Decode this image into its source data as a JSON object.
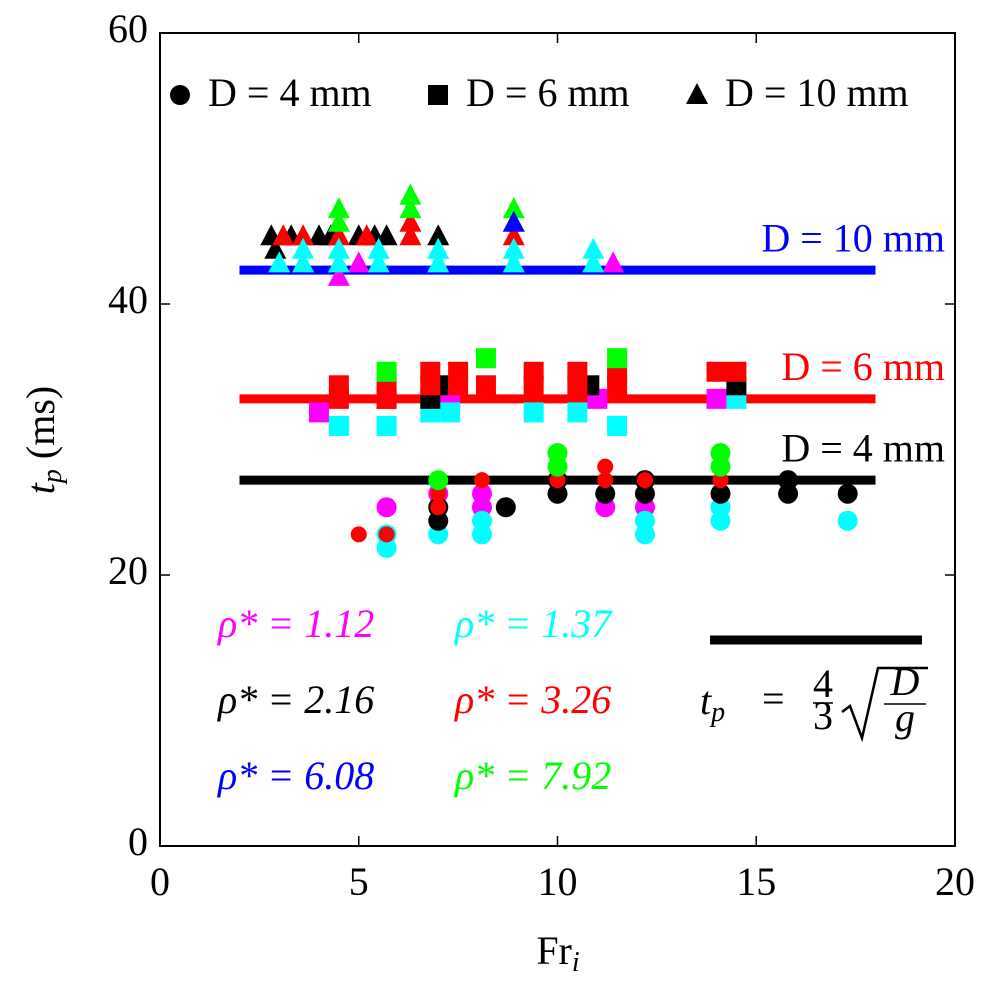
{
  "chart_data": {
    "type": "scatter",
    "xlabel": {
      "symbol": "Fr",
      "sub": "i"
    },
    "ylabel": {
      "symbol": "t",
      "sub": "p",
      "unit": "(ms)"
    },
    "xlim": [
      0,
      20
    ],
    "xticks": [
      0,
      5,
      10,
      15,
      20
    ],
    "ylim": [
      0,
      60
    ],
    "yticks": [
      0,
      20,
      40,
      60
    ],
    "shape_legend": [
      {
        "marker": "circle",
        "label": "D = 4 mm"
      },
      {
        "marker": "square",
        "label": "D = 6 mm"
      },
      {
        "marker": "triangle",
        "label": "D = 10 mm"
      }
    ],
    "color_legend": [
      {
        "label": "ρ* = 1.12",
        "color": "#ff00ff"
      },
      {
        "label": "ρ* = 1.37",
        "color": "#00ffff"
      },
      {
        "label": "ρ* = 2.16",
        "color": "#000000"
      },
      {
        "label": "ρ* = 3.26",
        "color": "#ff0000"
      },
      {
        "label": "ρ* = 6.08",
        "color": "#0000ff"
      },
      {
        "label": "ρ* = 7.92",
        "color": "#00ff00"
      }
    ],
    "fit_lines": [
      {
        "label": "D = 10 mm",
        "y": 42.5,
        "color": "#0000ff",
        "xrange": [
          2,
          18
        ]
      },
      {
        "label": "D = 6 mm",
        "y": 33,
        "color": "#ff0000",
        "xrange": [
          2,
          18
        ]
      },
      {
        "label": "D = 4 mm",
        "y": 27,
        "color": "#000000",
        "xrange": [
          2,
          18
        ]
      }
    ],
    "model": {
      "lhs": "t",
      "lhs_sub": "p",
      "eq": "=",
      "num": "4",
      "den": "3",
      "inner_num": "D",
      "inner_den": "g",
      "color": "#000000"
    },
    "series": [
      {
        "marker": "circle",
        "color": "#ff00ff",
        "x": [
          5.7,
          7,
          8.1,
          8.1,
          11.2,
          12.2
        ],
        "y": [
          25,
          26,
          26,
          25,
          25,
          25
        ]
      },
      {
        "marker": "circle",
        "color": "#00ffff",
        "x": [
          5.7,
          5.7,
          7,
          8.1,
          8.1,
          12.2,
          12.2,
          14.1,
          14.1,
          17.3
        ],
        "y": [
          22,
          23,
          23,
          24,
          23,
          24,
          23,
          25,
          24,
          24
        ]
      },
      {
        "marker": "circle",
        "color": "#000000",
        "x": [
          7,
          7,
          8.7,
          10,
          10,
          11.2,
          12.2,
          12.2,
          14.1,
          15.8,
          15.8,
          17.3
        ],
        "y": [
          24,
          25,
          25,
          26,
          27,
          26,
          26,
          27,
          26,
          27,
          26,
          26
        ]
      },
      {
        "marker": "circle-small",
        "color": "#ff0000",
        "x": [
          5,
          5.7,
          7,
          7,
          8.1,
          10,
          11.2,
          11.2,
          12.2,
          14.1
        ],
        "y": [
          23,
          23,
          25,
          26,
          27,
          27,
          27,
          28,
          27,
          27
        ]
      },
      {
        "marker": "circle",
        "color": "#00ff00",
        "x": [
          7,
          10,
          10,
          14.1,
          14.1
        ],
        "y": [
          27,
          29,
          28,
          29,
          28
        ]
      },
      {
        "marker": "square",
        "color": "#ff00ff",
        "x": [
          4,
          5.7,
          7.3,
          11,
          14
        ],
        "y": [
          32,
          33,
          33,
          33,
          33
        ]
      },
      {
        "marker": "square",
        "color": "#00ffff",
        "x": [
          4.5,
          5.7,
          6.8,
          7.3,
          9.4,
          10.5,
          11.5,
          14.5
        ],
        "y": [
          31,
          31,
          32,
          32,
          32,
          32,
          31,
          33
        ]
      },
      {
        "marker": "square",
        "color": "#000000",
        "x": [
          6.8,
          7,
          10.8,
          14.5
        ],
        "y": [
          33,
          34,
          34,
          34
        ]
      },
      {
        "marker": "square",
        "color": "#ff0000",
        "x": [
          4.5,
          4.5,
          5.7,
          5.7,
          6.8,
          6.8,
          7.5,
          7.5,
          8.2,
          9.4,
          9.4,
          10.5,
          10.5,
          11.5,
          11.5,
          14,
          14.5
        ],
        "y": [
          33,
          34,
          33,
          34,
          34,
          35,
          34,
          35,
          34,
          34,
          35,
          34,
          35,
          34,
          35,
          35,
          35
        ]
      },
      {
        "marker": "square",
        "color": "#00ff00",
        "x": [
          5.7,
          8.2,
          11.5
        ],
        "y": [
          35,
          36,
          36
        ]
      },
      {
        "marker": "triangle",
        "color": "#000000",
        "x": [
          2.8,
          2.9,
          3.3,
          4,
          4.3,
          5,
          5.4,
          5.7,
          7
        ],
        "y": [
          45,
          44,
          45,
          45,
          45,
          45,
          45,
          45,
          45
        ]
      },
      {
        "marker": "triangle",
        "color": "#ff0000",
        "x": [
          3.1,
          3.6,
          4.5,
          5.2,
          6.3,
          6.3,
          8.9
        ],
        "y": [
          45,
          45,
          45,
          45,
          46,
          45,
          45
        ]
      },
      {
        "marker": "triangle",
        "color": "#00ff00",
        "x": [
          4.5,
          4.5,
          6.3,
          6.3,
          8.9
        ],
        "y": [
          47,
          46,
          48,
          47,
          47
        ]
      },
      {
        "marker": "triangle",
        "color": "#0000ff",
        "x": [
          8.9
        ],
        "y": [
          46
        ]
      },
      {
        "marker": "triangle",
        "color": "#ff00ff",
        "x": [
          4.5,
          5,
          11.4
        ],
        "y": [
          42,
          43,
          43
        ]
      },
      {
        "marker": "triangle",
        "color": "#00ffff",
        "x": [
          3,
          3.6,
          3.6,
          4.5,
          4.5,
          5.5,
          5.5,
          7,
          7,
          8.9,
          8.9,
          10.9,
          10.9
        ],
        "y": [
          43,
          44,
          43,
          44,
          43,
          44,
          43,
          44,
          43,
          44,
          43,
          44,
          43
        ]
      }
    ]
  }
}
